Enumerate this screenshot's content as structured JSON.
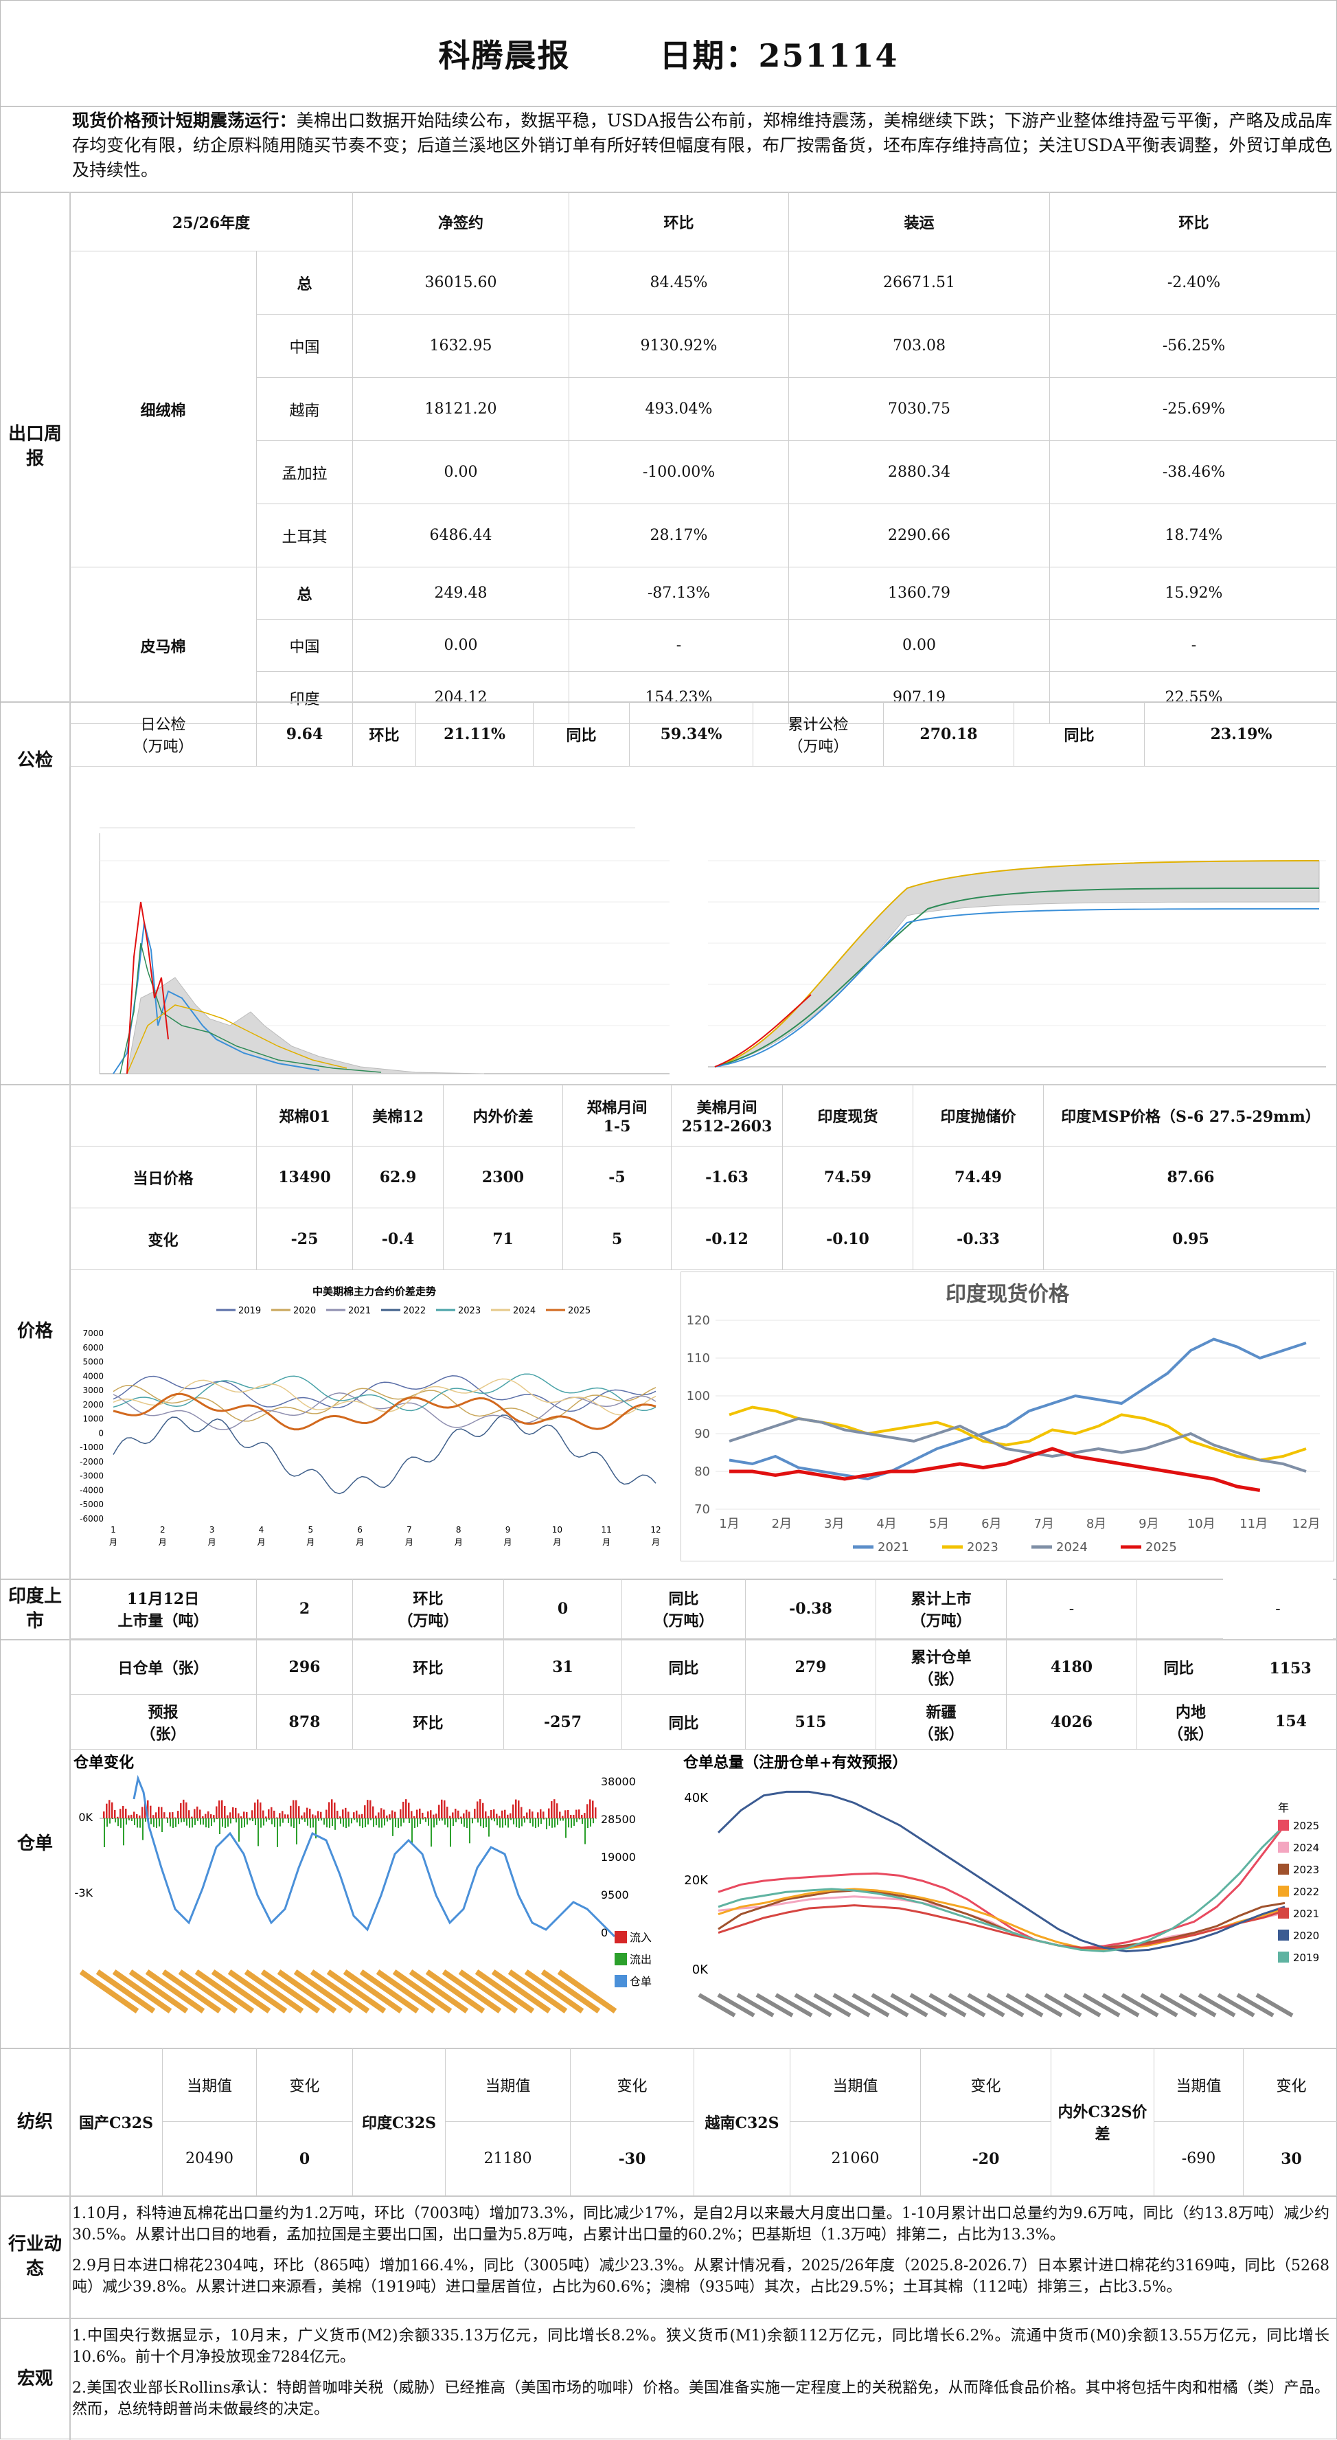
{
  "header": {
    "title": "科腾晨报",
    "date_label": "日期：251114"
  },
  "summary": {
    "lead": "现货价格预计短期震荡运行：",
    "text": "美棉出口数据开始陆续公布，数据平稳，USDA报告公布前，郑棉维持震荡，美棉继续下跌；下游产业整体维持盈亏平衡，产略及成品库存均变化有限，纺企原料随用随买节奏不变；后道兰溪地区外销订单有所好转但幅度有限，布厂按需备货，坯布库存维持高位；关注USDA平衡表调整，外贸订单成色及持续性。"
  },
  "export": {
    "section_label": "出口周报",
    "headers": [
      "25/26年度",
      "净签约",
      "环比",
      "装运",
      "环比"
    ],
    "groups": [
      {
        "name": "细绒棉",
        "rows": [
          {
            "c": "总",
            "net": "36015.60",
            "net_chg": "84.45%",
            "ship": "26671.51",
            "ship_chg": "-2.40%"
          },
          {
            "c": "中国",
            "net": "1632.95",
            "net_chg": "9130.92%",
            "ship": "703.08",
            "ship_chg": "-56.25%"
          },
          {
            "c": "越南",
            "net": "18121.20",
            "net_chg": "493.04%",
            "ship": "7030.75",
            "ship_chg": "-25.69%"
          },
          {
            "c": "孟加拉",
            "net": "0.00",
            "net_chg": "-100.00%",
            "ship": "2880.34",
            "ship_chg": "-38.46%"
          },
          {
            "c": "土耳其",
            "net": "6486.44",
            "net_chg": "28.17%",
            "ship": "2290.66",
            "ship_chg": "18.74%"
          }
        ]
      },
      {
        "name": "皮马棉",
        "rows": [
          {
            "c": "总",
            "net": "249.48",
            "net_chg": "-87.13%",
            "ship": "1360.79",
            "ship_chg": "15.92%"
          },
          {
            "c": "中国",
            "net": "0.00",
            "net_chg": "-",
            "ship": "0.00",
            "ship_chg": "-"
          },
          {
            "c": "印度",
            "net": "204.12",
            "net_chg": "154.23%",
            "ship": "907.19",
            "ship_chg": "22.55%"
          }
        ]
      }
    ]
  },
  "inspection": {
    "section_label": "公检",
    "daily_label": "日公检\n（万吨）",
    "daily": "9.64",
    "mom_label": "环比",
    "mom": "21.11%",
    "yoy_label": "同比",
    "yoy": "59.34%",
    "cum_label": "累计公检\n（万吨）",
    "cum": "270.18",
    "cum_yoy_label": "同比",
    "cum_yoy": "23.19%"
  },
  "price": {
    "section_label": "价格",
    "headers": [
      "郑棉01",
      "美棉12",
      "内外价差",
      "郑棉月间\n1-5",
      "美棉月间\n2512-2603",
      "印度现货",
      "印度抛储价",
      "印度MSP价格（S-6 27.5-29mm）"
    ],
    "row1_label": "当日价格",
    "row1": [
      "13490",
      "62.9",
      "2300",
      "-5",
      "-1.63",
      "74.59",
      "74.49",
      "87.66"
    ],
    "row2_label": "变化",
    "row2": [
      "-25",
      "-0.4",
      "71",
      "5",
      "-0.12",
      "-0.10",
      "-0.33",
      "0.95"
    ]
  },
  "charts": {
    "spread_title": "中美期棉主力合约价差走势",
    "spread_legend": [
      "2019",
      "2020",
      "2021",
      "2022",
      "2023",
      "2024",
      "2025"
    ],
    "spread_colors": [
      "#5b6fa8",
      "#c9a65a",
      "#8f8fb0",
      "#3f5f8a",
      "#4aa3a8",
      "#e6c98a",
      "#d2691e"
    ],
    "spread_yticks": [
      "7000",
      "6000",
      "5000",
      "4000",
      "3000",
      "2000",
      "1000",
      "0",
      "-1000",
      "-2000",
      "-3000",
      "-4000",
      "-5000",
      "-6000"
    ],
    "spread_xticks": [
      "1\n月",
      "2\n月",
      "3\n月",
      "4\n月",
      "5\n月",
      "6\n月",
      "7\n月",
      "8\n月",
      "9\n月",
      "10\n月",
      "11\n月",
      "12\n月"
    ],
    "india_title": "印度现货价格",
    "india_yticks": [
      "120",
      "110",
      "100",
      "90",
      "80",
      "70"
    ],
    "india_xticks": [
      "1月",
      "2月",
      "3月",
      "4月",
      "5月",
      "6月",
      "7月",
      "8月",
      "9月",
      "10月",
      "11月",
      "12月"
    ],
    "india_legend": [
      "2021",
      "2023",
      "2024",
      "2025"
    ],
    "india_colors": [
      "#5b8ec9",
      "#f2c200",
      "#7f8fa6",
      "#e01010"
    ],
    "warrant_title": "仓单变化",
    "warrant_yticks_left": [
      "0K",
      "-3K"
    ],
    "warrant_yticks_right": [
      "38000",
      "28500",
      "19000",
      "9500",
      "0"
    ],
    "warrant_legend": [
      "流入",
      "流出",
      "仓单"
    ],
    "warrant_colors": [
      "#d62728",
      "#2ca02c",
      "#4a90d9"
    ],
    "total_title": "仓单总量（注册仓单+有效预报）",
    "total_yticks": [
      "40K",
      "20K",
      "0K"
    ],
    "total_legend_title": "年",
    "total_legend": [
      "2025",
      "2024",
      "2023",
      "2022",
      "2021",
      "2020",
      "2019"
    ],
    "total_colors": [
      "#e84a5f",
      "#f4a6c0",
      "#a0522d",
      "#f5a623",
      "#d64541",
      "#3b5b92",
      "#5fb3a1"
    ]
  },
  "india_arrivals": {
    "section_label": "印度上市",
    "date_label": "11月12日\n上市量（吨）",
    "value": "2",
    "mom_label": "环比\n（万吨）",
    "mom": "0",
    "yoy_label": "同比\n（万吨）",
    "yoy": "-0.38",
    "cum_label": "累计上市\n（万吨）",
    "cum": "-",
    "cum_yoy_label": "同比",
    "cum_yoy": "-"
  },
  "warrant": {
    "section_label": "仓单",
    "row1": {
      "l1": "日仓单（张）",
      "v1": "296",
      "l2": "环比",
      "v2": "31",
      "l3": "同比",
      "v3": "279",
      "l4": "累计仓单\n（张）",
      "v4": "4180",
      "l5": "同比",
      "v5": "1153"
    },
    "row2": {
      "l1": "预报\n（张）",
      "v1": "878",
      "l2": "环比",
      "v2": "-257",
      "l3": "同比",
      "v3": "515",
      "l4": "新疆\n（张）",
      "v4": "4026",
      "l5": "内地\n（张）",
      "v5": "154"
    }
  },
  "yarn": {
    "section_label": "纺织",
    "items": [
      {
        "name": "国产C32S",
        "cur_label": "当期值",
        "chg_label": "变化",
        "cur": "20490",
        "chg": "0"
      },
      {
        "name": "印度C32S",
        "cur_label": "当期值",
        "chg_label": "变化",
        "cur": "21180",
        "chg": "-30"
      },
      {
        "name": "越南C32S",
        "cur_label": "当期值",
        "chg_label": "变化",
        "cur": "21060",
        "chg": "-20"
      },
      {
        "name": "内外C32S价差",
        "cur_label": "当期值",
        "chg_label": "变化",
        "cur": "-690",
        "chg": "30"
      }
    ]
  },
  "industry": {
    "section_label": "行业动态",
    "p1": "1.10月，科特迪瓦棉花出口量约为1.2万吨，环比（7003吨）增加73.3%，同比减少17%，是自2月以来最大月度出口量。1-10月累计出口总量约为9.6万吨，同比（约13.8万吨）减少约30.5%。从累计出口目的地看，孟加拉国是主要出口国，出口量为5.8万吨，占累计出口量的60.2%；巴基斯坦（1.3万吨）排第二，占比为13.3%。",
    "p2": "2.9月日本进口棉花2304吨，环比（865吨）增加166.4%，同比（3005吨）减少23.3%。从累计情况看，2025/26年度（2025.8-2026.7）日本累计进口棉花约3169吨，同比（5268吨）减少39.8%。从累计进口来源看，美棉（1919吨）进口量居首位，占比为60.6%；澳棉（935吨）其次，占比29.5%；土耳其棉（112吨）排第三，占比3.5%。"
  },
  "macro": {
    "section_label": "宏观",
    "p1": "1.中国央行数据显示，10月末，广义货币(M2)余额335.13万亿元，同比增长8.2%。狭义货币(M1)余额112万亿元，同比增长6.2%。流通中货币(M0)余额13.55万亿元，同比增长10.6%。前十个月净投放现金7284亿元。",
    "p2": "2.美国农业部长Rollins承认：特朗普咖啡关税（威胁）已经推高（美国市场的咖啡）价格。美国准备实施一定程度上的关税豁免，从而降低食品价格。其中将包括牛肉和柑橘（类）产品。然而，总统特朗普尚未做最终的决定。"
  }
}
